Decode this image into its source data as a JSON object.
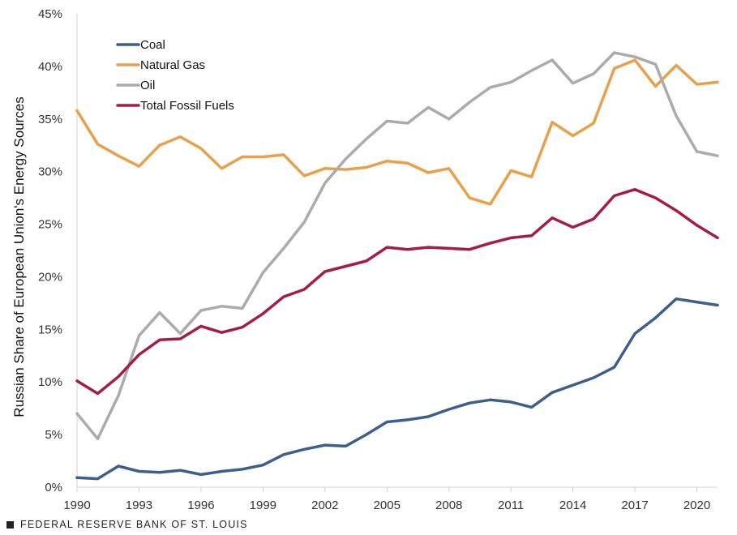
{
  "chart_data": {
    "type": "line",
    "title": "",
    "xlabel": "",
    "ylabel": "Russian Share of European Union's  Energy Sources",
    "xlim": [
      1990,
      2021
    ],
    "ylim": [
      0,
      45
    ],
    "y_ticks": [
      0,
      5,
      10,
      15,
      20,
      25,
      30,
      35,
      40,
      45
    ],
    "y_tick_labels": [
      "0%",
      "5%",
      "10%",
      "15%",
      "20%",
      "25%",
      "30%",
      "35%",
      "40%",
      "45%"
    ],
    "x_ticks": [
      1990,
      1993,
      1996,
      1999,
      2002,
      2005,
      2008,
      2011,
      2014,
      2017,
      2020
    ],
    "x_tick_labels": [
      "1990",
      "1993",
      "1996",
      "1999",
      "2002",
      "2005",
      "2008",
      "2011",
      "2014",
      "2017",
      "2020"
    ],
    "grid": false,
    "legend_position": "top-left",
    "x": [
      1990,
      1991,
      1992,
      1993,
      1994,
      1995,
      1996,
      1997,
      1998,
      1999,
      2000,
      2001,
      2002,
      2003,
      2004,
      2005,
      2006,
      2007,
      2008,
      2009,
      2010,
      2011,
      2012,
      2013,
      2014,
      2015,
      2016,
      2017,
      2018,
      2019,
      2020,
      2021
    ],
    "series": [
      {
        "name": "Coal",
        "color": "#3c5f8e",
        "values": [
          0.9,
          0.8,
          2.0,
          1.5,
          1.4,
          1.6,
          1.2,
          1.5,
          1.7,
          2.1,
          3.1,
          3.6,
          4.0,
          3.9,
          5.0,
          6.2,
          6.4,
          6.7,
          7.4,
          8.0,
          8.3,
          8.1,
          7.6,
          9.0,
          9.7,
          10.4,
          11.4,
          14.6,
          16.1,
          17.9,
          17.6,
          17.3
        ]
      },
      {
        "name": "Natural Gas",
        "color": "#e9a04a",
        "values": [
          35.8,
          32.6,
          31.5,
          30.5,
          32.5,
          33.3,
          32.2,
          30.3,
          31.4,
          31.4,
          31.6,
          29.6,
          30.3,
          30.2,
          30.4,
          31.0,
          30.8,
          29.9,
          30.3,
          27.5,
          26.9,
          30.1,
          29.5,
          34.7,
          33.4,
          34.6,
          39.8,
          40.6,
          38.1,
          40.1,
          38.3,
          38.5
        ]
      },
      {
        "name": "Oil",
        "color": "#ababab",
        "values": [
          7.0,
          4.6,
          8.7,
          14.4,
          16.6,
          14.6,
          16.8,
          17.2,
          17.0,
          20.4,
          22.7,
          25.2,
          28.9,
          31.2,
          33.1,
          34.8,
          34.6,
          36.1,
          35.0,
          36.6,
          38.0,
          38.5,
          39.6,
          40.6,
          38.4,
          39.3,
          41.3,
          40.9,
          40.2,
          35.3,
          31.9,
          31.5
        ]
      },
      {
        "name": "Total Fossil Fuels",
        "color": "#a31d47",
        "values": [
          10.1,
          8.9,
          10.5,
          12.6,
          14.0,
          14.1,
          15.3,
          14.7,
          15.2,
          16.5,
          18.1,
          18.8,
          20.5,
          21.0,
          21.5,
          22.8,
          22.6,
          22.8,
          22.7,
          22.6,
          23.2,
          23.7,
          23.9,
          25.6,
          24.7,
          25.5,
          27.7,
          28.3,
          27.5,
          26.3,
          24.9,
          23.7
        ]
      }
    ]
  },
  "footer": {
    "text": "FEDERAL RESERVE BANK OF ST. LOUIS"
  }
}
